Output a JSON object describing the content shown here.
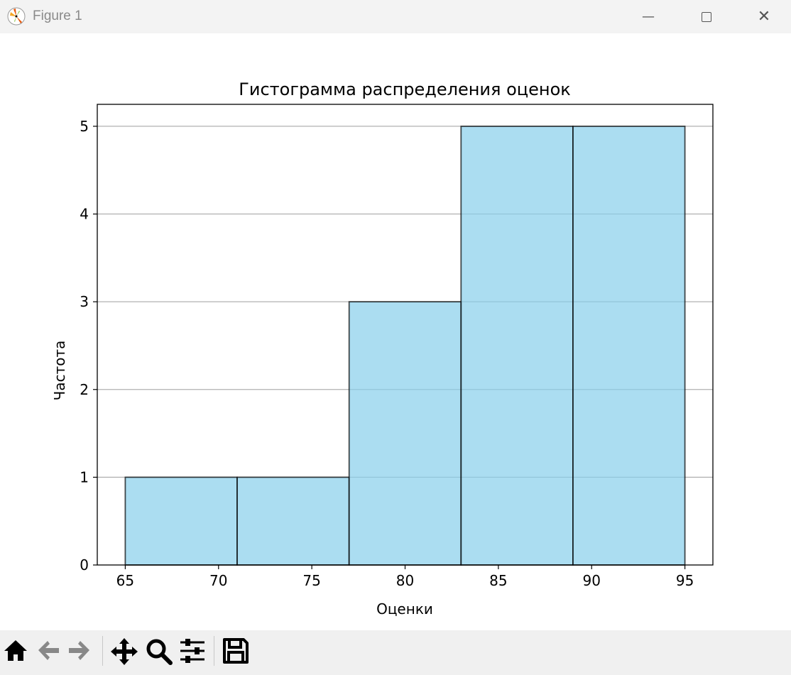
{
  "window": {
    "title": "Figure 1",
    "app_icon": "matplotlib-logo-icon"
  },
  "toolbar": {
    "buttons": [
      "home-icon",
      "back-arrow-icon",
      "forward-arrow-icon",
      "pan-icon",
      "zoom-icon",
      "configure-subplots-icon",
      "save-icon"
    ]
  },
  "chart_data": {
    "type": "bar",
    "subtype": "histogram",
    "title": "Гистограмма распределения оценок",
    "xlabel": "Оценки",
    "ylabel": "Частота",
    "bin_edges": [
      65,
      71,
      77,
      83,
      89,
      95
    ],
    "values": [
      1,
      1,
      3,
      5,
      5
    ],
    "xlim": [
      63.5,
      96.5
    ],
    "ylim": [
      0,
      5.25
    ],
    "xticks": [
      65,
      70,
      75,
      80,
      85,
      90,
      95
    ],
    "yticks": [
      0,
      1,
      2,
      3,
      4,
      5
    ],
    "grid": "y-axis only",
    "bar_color": "#87ceeb",
    "bar_alpha": 0.7,
    "edge_color": "#000000"
  }
}
